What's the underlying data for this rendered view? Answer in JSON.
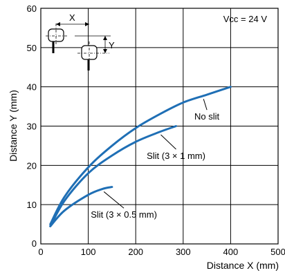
{
  "chart_data": {
    "type": "line",
    "xlabel": "Distance X (mm)",
    "ylabel": "Distance Y (mm)",
    "xlim": [
      0,
      500
    ],
    "ylim": [
      0,
      60
    ],
    "xticks": [
      0,
      100,
      200,
      300,
      400,
      500
    ],
    "yticks": [
      10,
      20,
      30,
      40,
      50,
      60
    ],
    "grid": true,
    "annotation_text": "Vcc = 24 V",
    "diagram_labels": {
      "x": "X",
      "y": "Y"
    },
    "series": [
      {
        "name": "No slit",
        "color": "#1f6fb5",
        "x": [
          20,
          50,
          100,
          150,
          200,
          250,
          300,
          350,
          400
        ],
        "y": [
          5,
          12,
          19.5,
          25,
          29.5,
          33,
          36,
          38,
          40
        ]
      },
      {
        "name": "Slit (3 × 1 mm)",
        "color": "#1f6fb5",
        "x": [
          20,
          50,
          100,
          150,
          200,
          250,
          285
        ],
        "y": [
          4.5,
          11,
          18,
          22.5,
          26,
          28.5,
          30
        ]
      },
      {
        "name": "Slit (3 × 0.5 mm)",
        "color": "#1f6fb5",
        "x": [
          20,
          50,
          100,
          130,
          150
        ],
        "y": [
          4.5,
          8.5,
          12.5,
          14,
          14.5
        ]
      }
    ],
    "labels": [
      {
        "series": 0,
        "text": "No slit",
        "at": [
          350,
          32
        ],
        "anchor_x": 340
      },
      {
        "series": 1,
        "text": "Slit (3 × 1 mm)",
        "at": [
          285,
          22
        ],
        "anchor_x": 250
      },
      {
        "series": 2,
        "text": "Slit (3 × 0.5 mm)",
        "at": [
          175,
          7
        ],
        "anchor_x": 130
      }
    ]
  }
}
